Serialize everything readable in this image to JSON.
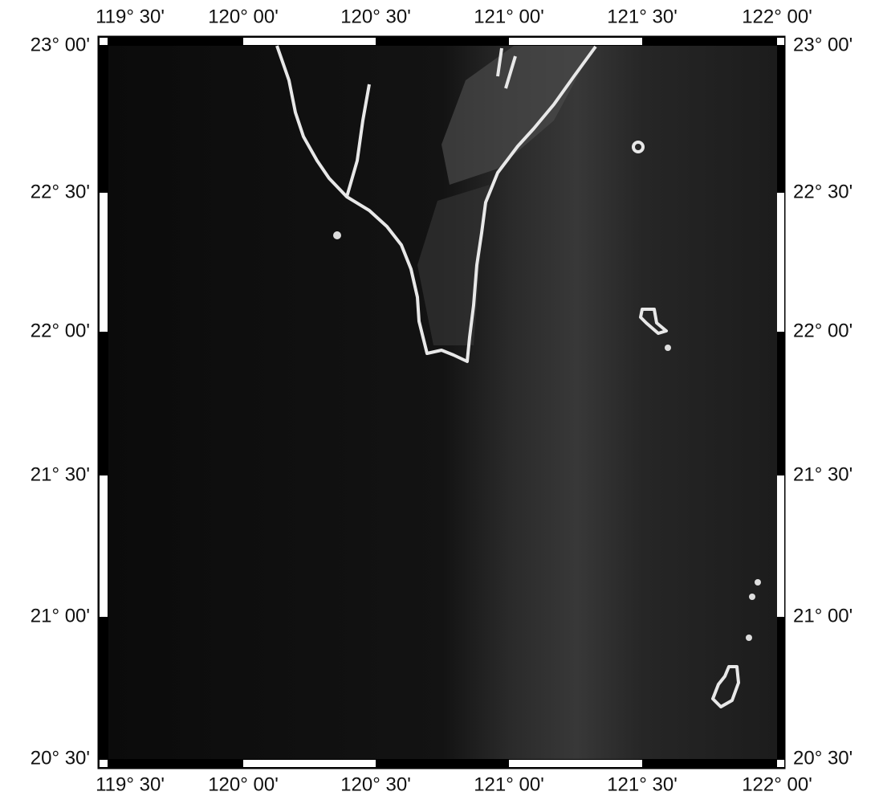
{
  "map": {
    "top_labels": [
      "119° 30'",
      "120° 00'",
      "120° 30'",
      "121° 00'",
      "121° 30'",
      "122° 00'"
    ],
    "bottom_labels": [
      "119° 30'",
      "120° 00'",
      "120° 30'",
      "121° 00'",
      "121° 30'",
      "122° 00'"
    ],
    "left_labels": [
      "23° 00'",
      "22° 30'",
      "22° 00'",
      "21° 30'",
      "21° 00'",
      "20° 30'"
    ],
    "right_labels": [
      "23° 00'",
      "22° 30'",
      "22° 00'",
      "21° 30'",
      "21° 00'",
      "20° 30'"
    ]
  }
}
